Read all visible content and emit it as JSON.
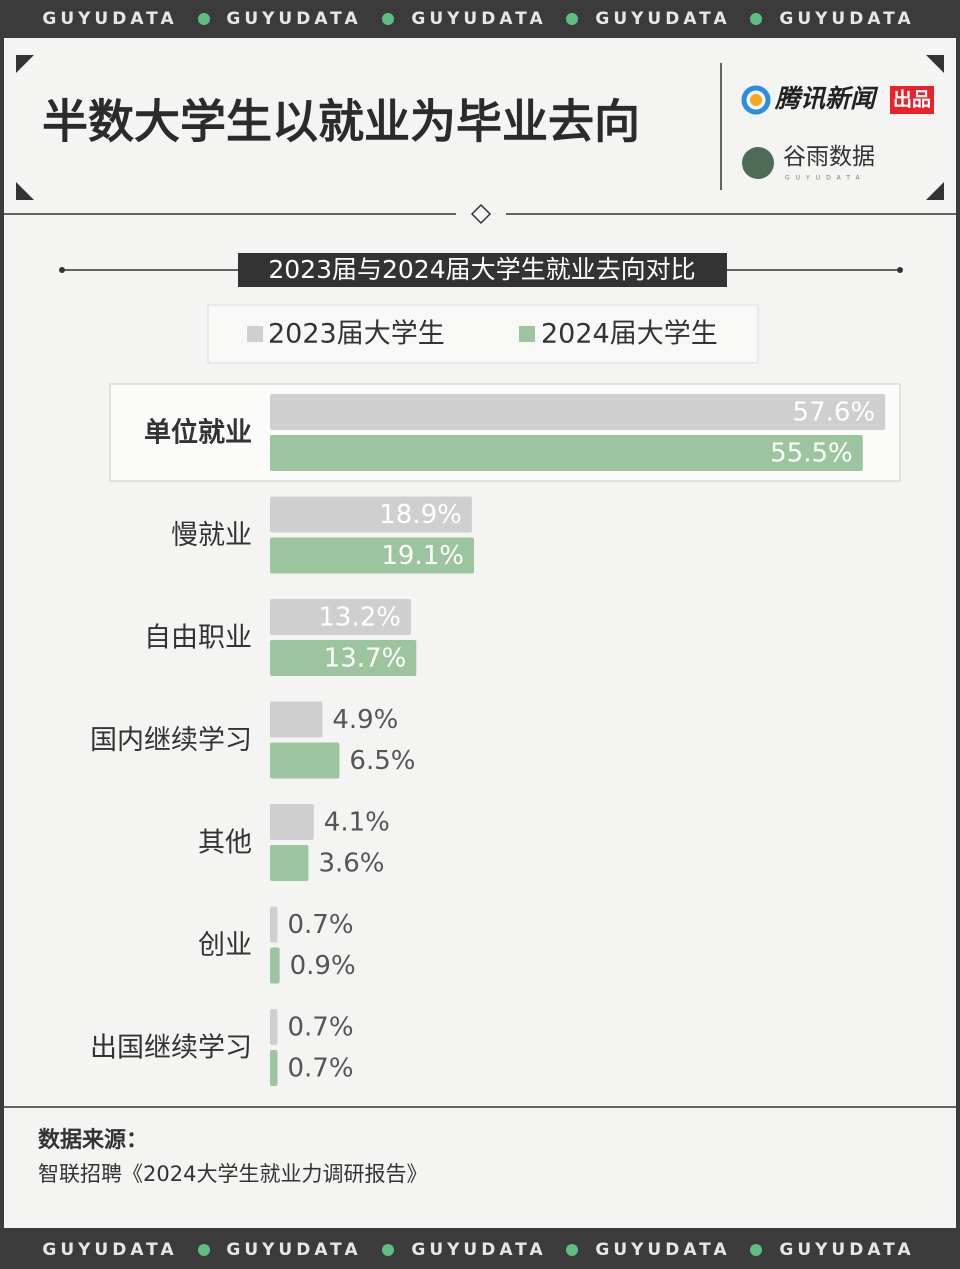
{
  "banner": "GUYUDATA",
  "logos": {
    "publisher": "腾讯新闻",
    "badge": "出品",
    "producer": "谷雨数据",
    "producer_sub": "GUYUDATA"
  },
  "chart_data": {
    "type": "hbar",
    "title": "半数大学生以就业为毕业去向",
    "subtitle": "2023届与2024届大学生就业去向对比",
    "categories": [
      "单位就业",
      "慢就业",
      "自由职业",
      "国内继续学习",
      "其他",
      "创业",
      "出国继续学习"
    ],
    "series": [
      {
        "name": "2023届大学生",
        "color": "#cfcfcf",
        "values": [
          57.6,
          18.9,
          13.2,
          4.9,
          4.1,
          0.7,
          0.7
        ],
        "value_labels": [
          "57.6%",
          "18.9%",
          "13.2%",
          "4.9%",
          "4.1%",
          "0.7%",
          "0.7%"
        ]
      },
      {
        "name": "2024届大学生",
        "color": "#9cc49e",
        "values": [
          55.5,
          19.1,
          13.7,
          6.5,
          3.6,
          0.9,
          0.7
        ],
        "value_labels": [
          "55.5%",
          "19.1%",
          "13.7%",
          "6.5%",
          "3.6%",
          "0.9%",
          "0.7%"
        ]
      }
    ],
    "source_label": "数据来源：",
    "source": "智联招聘《2024大学生就业力调研报告》"
  }
}
